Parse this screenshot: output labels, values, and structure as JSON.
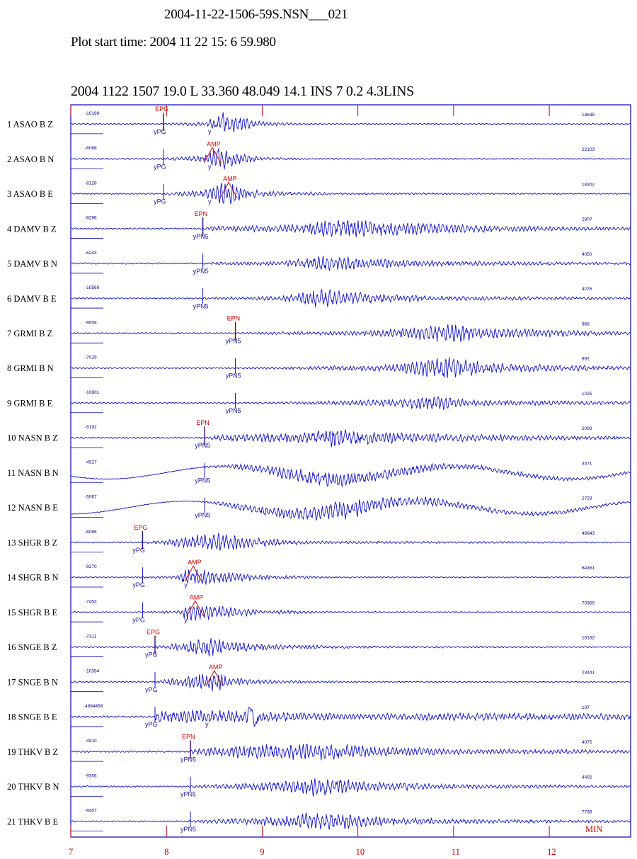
{
  "header": {
    "title": "2004-11-22-1506-59S.NSN___021",
    "start_time": "Plot start time: 2004  11 22   15: 6  59.980",
    "event_line": "2004 1122 1507 19.0 L   33.360   48.049 14.1   INS   7 0.2 4.3LINS"
  },
  "colors": {
    "trace": "#1010d0",
    "frame": "#0000c0",
    "ticks": "#d00000",
    "text": "#000000"
  },
  "chart_data": {
    "type": "line",
    "title": "2004-11-22-1506-59S.NSN___021",
    "xlabel": "MIN",
    "xlim": [
      7,
      12.85
    ],
    "x_ticks": [
      "7",
      "8",
      "9",
      "10",
      "11",
      "12"
    ],
    "x_unit_label": "MIN",
    "grid": false,
    "channels": [
      {
        "label": "1  ASAO   B  Z",
        "min": "-10199",
        "max": "18645",
        "onset": 8.0,
        "env": [
          [
            7.95,
            1
          ],
          [
            8.4,
            3
          ],
          [
            8.6,
            16
          ],
          [
            8.8,
            8
          ],
          [
            9.0,
            3
          ],
          [
            9.5,
            1
          ],
          [
            12.85,
            0.7
          ]
        ],
        "picks": [
          {
            "x": 7.97,
            "text": "EPG",
            "color": "red"
          },
          {
            "x": 7.97,
            "text": "yPG",
            "color": "blue"
          },
          {
            "x": 8.45,
            "text": "y",
            "color": "blue"
          }
        ]
      },
      {
        "label": "2  ASAO   B  N",
        "min": "-6068",
        "max": "22103",
        "onset": 7.97,
        "env": [
          [
            7.9,
            1
          ],
          [
            8.4,
            4
          ],
          [
            8.55,
            16
          ],
          [
            8.75,
            7
          ],
          [
            9.0,
            2
          ],
          [
            9.6,
            1
          ],
          [
            12.85,
            0.7
          ]
        ],
        "picks": [
          {
            "x": 7.97,
            "text": "yPG",
            "color": "blue"
          },
          {
            "x": 8.48,
            "text": "AMP",
            "color": "red"
          },
          {
            "x": 8.45,
            "text": "y",
            "color": "blue"
          }
        ]
      },
      {
        "label": "3  ASAO   B  E",
        "min": "-8128",
        "max": "18302",
        "onset": 7.97,
        "env": [
          [
            7.9,
            1
          ],
          [
            8.4,
            5
          ],
          [
            8.6,
            16
          ],
          [
            8.8,
            7
          ],
          [
            9.2,
            3
          ],
          [
            9.8,
            1.5
          ],
          [
            12.85,
            0.8
          ]
        ],
        "picks": [
          {
            "x": 7.97,
            "text": "yPG",
            "color": "blue"
          },
          {
            "x": 8.65,
            "text": "AMP",
            "color": "red"
          },
          {
            "x": 8.45,
            "text": "y",
            "color": "blue"
          }
        ]
      },
      {
        "label": "4  DAMV   B  Z",
        "min": "-8296",
        "max": "2807",
        "onset": 8.38,
        "env": [
          [
            8.3,
            1
          ],
          [
            8.6,
            4
          ],
          [
            9.4,
            5
          ],
          [
            9.7,
            12
          ],
          [
            10.3,
            9
          ],
          [
            11,
            6
          ],
          [
            12,
            3
          ],
          [
            12.85,
            2
          ]
        ],
        "picks": [
          {
            "x": 8.38,
            "text": "EPN",
            "color": "red"
          },
          {
            "x": 8.38,
            "text": "yPN5",
            "color": "blue"
          }
        ]
      },
      {
        "label": "5  DAMV   B  N",
        "min": "-6243",
        "max": "4050",
        "onset": 8.38,
        "env": [
          [
            8.3,
            1
          ],
          [
            8.6,
            2
          ],
          [
            9.2,
            3
          ],
          [
            9.6,
            10
          ],
          [
            10.2,
            6
          ],
          [
            11,
            3
          ],
          [
            12.85,
            1.5
          ]
        ],
        "picks": [
          {
            "x": 8.38,
            "text": "yPN5",
            "color": "blue"
          }
        ]
      },
      {
        "label": "6  DAMV   B  E",
        "min": "-10569",
        "max": "4276",
        "onset": 8.38,
        "env": [
          [
            8.3,
            1
          ],
          [
            8.6,
            2
          ],
          [
            9.2,
            3
          ],
          [
            9.6,
            12
          ],
          [
            10.2,
            6
          ],
          [
            11,
            3
          ],
          [
            12.85,
            1.5
          ]
        ],
        "picks": [
          {
            "x": 8.38,
            "text": "yPN5",
            "color": "blue"
          }
        ]
      },
      {
        "label": "7  GRMI   B  Z",
        "min": "-9008",
        "max": "868",
        "onset": 8.72,
        "env": [
          [
            8.7,
            1
          ],
          [
            9.2,
            2
          ],
          [
            10,
            3
          ],
          [
            10.5,
            7
          ],
          [
            11.0,
            14
          ],
          [
            11.5,
            6
          ],
          [
            12.85,
            2
          ]
        ],
        "picks": [
          {
            "x": 8.72,
            "text": "EPN",
            "color": "red"
          },
          {
            "x": 8.72,
            "text": "yPN5",
            "color": "blue"
          }
        ]
      },
      {
        "label": "8  GRMI   B  N",
        "min": "-7029",
        "max": "892",
        "onset": 8.72,
        "env": [
          [
            8.7,
            1
          ],
          [
            9.5,
            2
          ],
          [
            10.4,
            5
          ],
          [
            10.9,
            16
          ],
          [
            11.4,
            6
          ],
          [
            12.85,
            2
          ]
        ],
        "picks": [
          {
            "x": 8.72,
            "text": "yPN5",
            "color": "blue"
          }
        ]
      },
      {
        "label": "9  GRMI   B  E",
        "min": "-10801",
        "max": "1025",
        "onset": 8.72,
        "env": [
          [
            8.7,
            1
          ],
          [
            9.5,
            2
          ],
          [
            10.4,
            5
          ],
          [
            10.7,
            11
          ],
          [
            11.2,
            4
          ],
          [
            12.85,
            2
          ]
        ],
        "picks": [
          {
            "x": 8.72,
            "text": "yPN5",
            "color": "blue"
          }
        ]
      },
      {
        "label": "10  NASN   B  Z",
        "min": "-5192",
        "max": "2083",
        "onset": 8.4,
        "env": [
          [
            8.3,
            1
          ],
          [
            8.7,
            5
          ],
          [
            9.4,
            6
          ],
          [
            9.7,
            12
          ],
          [
            10.3,
            7
          ],
          [
            11.5,
            4
          ],
          [
            12.85,
            2
          ]
        ],
        "picks": [
          {
            "x": 8.4,
            "text": "EPN",
            "color": "red"
          },
          {
            "x": 8.4,
            "text": "yPN5",
            "color": "blue"
          }
        ]
      },
      {
        "label": "11  NASN   B  N",
        "min": "-4527",
        "max": "3371",
        "onset": 8.4,
        "env": [
          [
            8.3,
            0.5
          ],
          [
            8.7,
            3
          ],
          [
            9.6,
            11
          ],
          [
            10.2,
            7
          ],
          [
            11.0,
            4
          ],
          [
            12.85,
            2
          ]
        ],
        "picks": [
          {
            "x": 8.4,
            "text": "yPN5",
            "color": "blue"
          }
        ]
      },
      {
        "label": "12  NASN   B  E",
        "min": "-5067",
        "max": "2723",
        "onset": 8.4,
        "env": [
          [
            8.3,
            0.5
          ],
          [
            8.7,
            4
          ],
          [
            9.5,
            9
          ],
          [
            9.8,
            14
          ],
          [
            10.4,
            7
          ],
          [
            11.5,
            3
          ],
          [
            12.85,
            2
          ]
        ],
        "picks": [
          {
            "x": 8.4,
            "text": "yPN5",
            "color": "blue"
          }
        ]
      },
      {
        "label": "13  SHGR   B  Z",
        "min": "-8086",
        "max": "46643",
        "onset": 7.75,
        "env": [
          [
            7.7,
            1
          ],
          [
            8.0,
            3
          ],
          [
            8.3,
            10
          ],
          [
            8.5,
            13
          ],
          [
            8.9,
            6
          ],
          [
            9.5,
            2
          ],
          [
            12.85,
            0.8
          ]
        ],
        "picks": [
          {
            "x": 7.75,
            "text": "EPG",
            "color": "red"
          },
          {
            "x": 7.75,
            "text": "yPG",
            "color": "blue"
          }
        ]
      },
      {
        "label": "14  SHGR   B  N",
        "min": "-9270",
        "max": "64361",
        "onset": 7.75,
        "env": [
          [
            7.7,
            1
          ],
          [
            8.1,
            2
          ],
          [
            8.25,
            15
          ],
          [
            8.5,
            8
          ],
          [
            9.0,
            3
          ],
          [
            9.8,
            1
          ],
          [
            12.85,
            0.7
          ]
        ],
        "picks": [
          {
            "x": 7.75,
            "text": "yPG",
            "color": "blue"
          },
          {
            "x": 8.28,
            "text": "AMP",
            "color": "red"
          },
          {
            "x": 8.2,
            "text": "y",
            "color": "blue"
          }
        ]
      },
      {
        "label": "15  SHGR   B  E",
        "min": "-7453",
        "max": "70369",
        "onset": 7.75,
        "env": [
          [
            7.7,
            1
          ],
          [
            8.1,
            2
          ],
          [
            8.25,
            15
          ],
          [
            8.5,
            9
          ],
          [
            9.0,
            3
          ],
          [
            9.8,
            1
          ],
          [
            12.85,
            0.7
          ]
        ],
        "picks": [
          {
            "x": 7.75,
            "text": "yPG",
            "color": "blue"
          },
          {
            "x": 8.3,
            "text": "AMP",
            "color": "red"
          },
          {
            "x": 8.2,
            "text": "y",
            "color": "blue"
          }
        ]
      },
      {
        "label": "16  SNGE   B  Z",
        "min": "-7311",
        "max": "16162",
        "onset": 7.88,
        "env": [
          [
            7.8,
            1
          ],
          [
            8.0,
            3
          ],
          [
            8.45,
            13
          ],
          [
            8.7,
            6
          ],
          [
            9.2,
            3
          ],
          [
            10,
            1.5
          ],
          [
            12.85,
            0.8
          ]
        ],
        "picks": [
          {
            "x": 7.88,
            "text": "EPG",
            "color": "red"
          },
          {
            "x": 7.88,
            "text": "yPG",
            "color": "blue"
          }
        ]
      },
      {
        "label": "17  SNGE   B  N",
        "min": "-10354",
        "max": "23441",
        "onset": 7.88,
        "env": [
          [
            7.8,
            1
          ],
          [
            8.0,
            3
          ],
          [
            8.5,
            14
          ],
          [
            8.7,
            5
          ],
          [
            9.2,
            2
          ],
          [
            10,
            1
          ],
          [
            12.85,
            0.7
          ]
        ],
        "picks": [
          {
            "x": 7.88,
            "text": "yPG",
            "color": "blue"
          },
          {
            "x": 8.5,
            "text": "AMP",
            "color": "red"
          }
        ]
      },
      {
        "label": "18  SNGE   B  E",
        "min": "4994458",
        "max": "107",
        "onset": 7.88,
        "env": [
          [
            7.0,
            6
          ],
          [
            7.9,
            7
          ],
          [
            8.5,
            9
          ],
          [
            9.0,
            7
          ],
          [
            10,
            4
          ],
          [
            11,
            5
          ],
          [
            12.85,
            4
          ]
        ],
        "picks": [
          {
            "x": 7.88,
            "text": "yPG",
            "color": "blue"
          },
          {
            "x": 8.42,
            "text": "y",
            "color": "blue"
          }
        ]
      },
      {
        "label": "19  THKV   B  Z",
        "min": "-4910",
        "max": "4075",
        "onset": 8.25,
        "env": [
          [
            8.2,
            1
          ],
          [
            8.5,
            8
          ],
          [
            9.0,
            9
          ],
          [
            9.5,
            12
          ],
          [
            10.2,
            7
          ],
          [
            11,
            4
          ],
          [
            12.85,
            2
          ]
        ],
        "picks": [
          {
            "x": 8.25,
            "text": "EPN",
            "color": "red"
          },
          {
            "x": 8.25,
            "text": "yPN5",
            "color": "blue"
          }
        ]
      },
      {
        "label": "20  THKV   B  N",
        "min": "-9356",
        "max": "4492",
        "onset": 8.25,
        "env": [
          [
            8.2,
            1
          ],
          [
            8.5,
            3
          ],
          [
            9.2,
            6
          ],
          [
            9.5,
            13
          ],
          [
            10.2,
            6
          ],
          [
            11,
            3
          ],
          [
            12.85,
            1.5
          ]
        ],
        "picks": [
          {
            "x": 8.25,
            "text": "yPN5",
            "color": "blue"
          }
        ]
      },
      {
        "label": "21  THKV   B  E",
        "min": "-9457",
        "max": "7739",
        "onset": 8.25,
        "env": [
          [
            8.2,
            1
          ],
          [
            8.5,
            3
          ],
          [
            9.2,
            6
          ],
          [
            9.5,
            13
          ],
          [
            10.2,
            6
          ],
          [
            11,
            3
          ],
          [
            12.85,
            1.5
          ]
        ],
        "picks": [
          {
            "x": 8.25,
            "text": "yPN5",
            "color": "blue"
          }
        ]
      }
    ]
  }
}
